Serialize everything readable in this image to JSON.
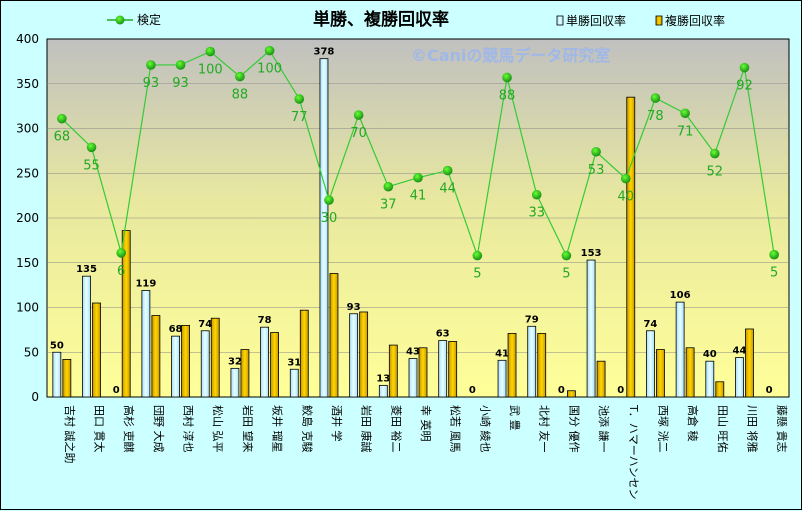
{
  "chart_data": {
    "type": "bar",
    "title": "単勝、複勝回収率",
    "watermark": "©Caniの競馬データ研究室",
    "ylim": [
      0,
      400
    ],
    "yticks": [
      0,
      50,
      100,
      150,
      200,
      250,
      300,
      350,
      400
    ],
    "categories": [
      "吉村 誠之助",
      "田口 貫太",
      "高杉 吏麒",
      "団野 大成",
      "西村 淳也",
      "松山 弘平",
      "岩田 望来",
      "坂井 瑠星",
      "鮫島 克駿",
      "酒井 学",
      "岩田 康誠",
      "菱田 裕二",
      "幸 英明",
      "松若 風馬",
      "小崎 綾也",
      "武 豊",
      "北村 友一",
      "国分 優作",
      "池添 謙一",
      "T．ハマーハンセン",
      "西塚 洸二",
      "高倉 稜",
      "田山 旺佑",
      "川田 将雅",
      "藤懸 貴志"
    ],
    "series": [
      {
        "name": "単勝回収率",
        "color": "#ccffff",
        "stroke": "#000000",
        "values": [
          50,
          135,
          0,
          119,
          68,
          74,
          32,
          78,
          31,
          378,
          93,
          13,
          43,
          63,
          0,
          41,
          79,
          0,
          153,
          0,
          74,
          106,
          40,
          44,
          0
        ]
      },
      {
        "name": "複勝回収率",
        "color": "#e6b800",
        "stroke": "#000000",
        "values": [
          42,
          105,
          186,
          91,
          80,
          88,
          53,
          72,
          97,
          138,
          95,
          58,
          55,
          62,
          0,
          71,
          71,
          7,
          40,
          335,
          53,
          55,
          17,
          76,
          0
        ]
      },
      {
        "name": "検定",
        "color": "#22aa22",
        "values": [
          311,
          279,
          161,
          371,
          371,
          386,
          358,
          387,
          333,
          220,
          315,
          235,
          245,
          253,
          158,
          357,
          226,
          158,
          274,
          244,
          334,
          317,
          272,
          368,
          159
        ],
        "labels": [
          68,
          55,
          6,
          93,
          93,
          100,
          88,
          100,
          77,
          30,
          70,
          37,
          41,
          44,
          5,
          88,
          33,
          5,
          53,
          40,
          78,
          71,
          52,
          92,
          5
        ]
      }
    ],
    "bar_labels": [
      "50",
      "135",
      "0",
      "119",
      "68",
      "74",
      "32",
      "78",
      "31",
      "378",
      "93",
      "13",
      "43",
      "63",
      "0",
      "41",
      "79",
      "0",
      "153",
      "0",
      "74",
      "106",
      "40",
      "44",
      "0"
    ]
  }
}
